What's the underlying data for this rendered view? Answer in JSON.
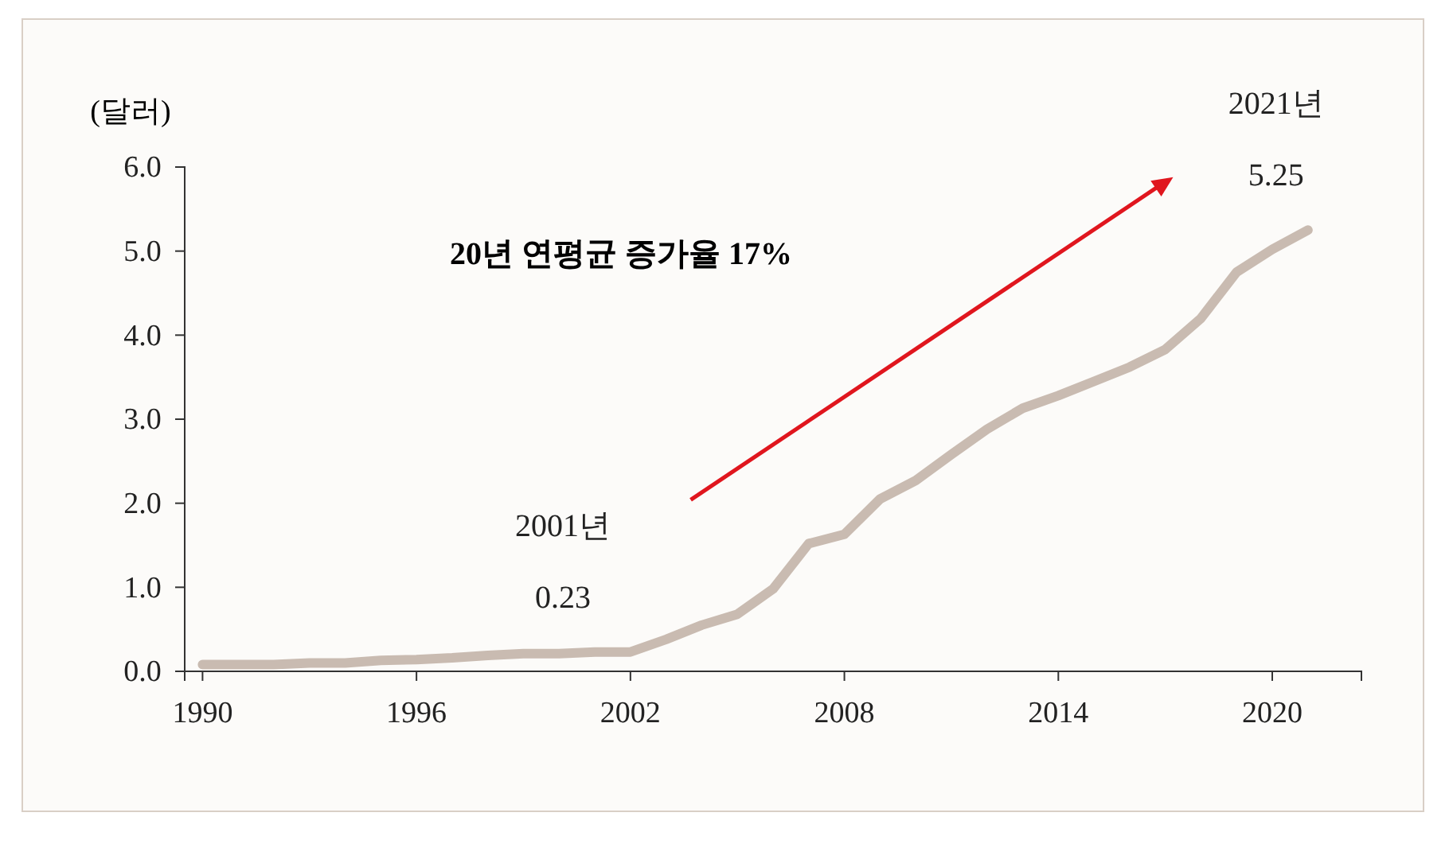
{
  "chart_data": {
    "type": "line",
    "ylabel": "(달러)",
    "annotations": [
      "20년 연평균 증가율 17%",
      "2001년",
      {
        "text": "0.23",
        "x": 2001,
        "y": 0.23
      },
      "2021년",
      {
        "text": "5.25",
        "x": 2021,
        "y": 5.25
      }
    ],
    "x": [
      1990,
      1991,
      1992,
      1993,
      1994,
      1995,
      1996,
      1997,
      1998,
      1999,
      2000,
      2001,
      2002,
      2003,
      2004,
      2005,
      2006,
      2007,
      2008,
      2009,
      2010,
      2011,
      2012,
      2013,
      2014,
      2015,
      2016,
      2017,
      2018,
      2019,
      2020,
      2021
    ],
    "series": [
      {
        "color": "#c9bbb1",
        "values": [
          0.08,
          0.08,
          0.08,
          0.1,
          0.1,
          0.13,
          0.14,
          0.16,
          0.19,
          0.21,
          0.21,
          0.23,
          0.23,
          0.38,
          0.55,
          0.68,
          0.98,
          1.52,
          1.63,
          2.05,
          2.27,
          2.58,
          2.88,
          3.13,
          3.28,
          3.45,
          3.62,
          3.83,
          4.2,
          4.75,
          5.02,
          5.25
        ]
      }
    ],
    "xlim": [
      1989.5,
      2022.5
    ],
    "xticks": [
      1990,
      1996,
      2002,
      2008,
      2014,
      2020
    ],
    "ylim": [
      0,
      6
    ],
    "yticks": [
      {
        "value": 0,
        "label": "0.0"
      },
      {
        "value": 1,
        "label": "1.0"
      },
      {
        "value": 2,
        "label": "2.0"
      },
      {
        "value": 3,
        "label": "3.0"
      },
      {
        "value": 4,
        "label": "4.0"
      },
      {
        "value": 5,
        "label": "5.0"
      },
      {
        "value": 6,
        "label": "6.0"
      }
    ],
    "grid": false,
    "marker": "none",
    "line_style": "solid"
  }
}
